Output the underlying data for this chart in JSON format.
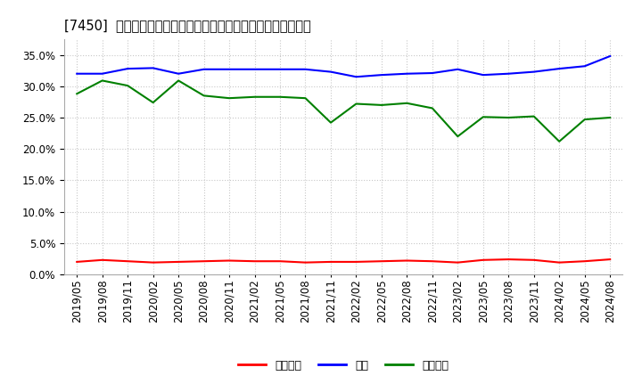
{
  "title": "[7450]  売上債権、在庫、買入債務の総資産に対する比率の推移",
  "background_color": "#ffffff",
  "plot_bg_color": "#ffffff",
  "grid_color": "#c8c8c8",
  "legend_labels": [
    "売上債権",
    "在庫",
    "買入債務"
  ],
  "line_colors": [
    "#ff0000",
    "#0000ff",
    "#008000"
  ],
  "dates": [
    "2019/05",
    "2019/08",
    "2019/11",
    "2020/02",
    "2020/05",
    "2020/08",
    "2020/11",
    "2021/02",
    "2021/05",
    "2021/08",
    "2021/11",
    "2022/02",
    "2022/05",
    "2022/08",
    "2022/11",
    "2023/02",
    "2023/05",
    "2023/08",
    "2023/11",
    "2024/02",
    "2024/05",
    "2024/08"
  ],
  "urikake": [
    2.0,
    2.3,
    2.1,
    1.9,
    2.0,
    2.1,
    2.2,
    2.1,
    2.1,
    1.9,
    2.0,
    2.0,
    2.1,
    2.2,
    2.1,
    1.9,
    2.3,
    2.4,
    2.3,
    1.9,
    2.1,
    2.4
  ],
  "zaiko": [
    32.0,
    32.0,
    32.8,
    32.9,
    32.0,
    32.7,
    32.7,
    32.7,
    32.7,
    32.7,
    32.3,
    31.5,
    31.8,
    32.0,
    32.1,
    32.7,
    31.8,
    32.0,
    32.3,
    32.8,
    33.2,
    34.8
  ],
  "kaiire": [
    28.8,
    30.9,
    30.1,
    27.4,
    30.9,
    28.5,
    28.1,
    28.3,
    28.3,
    28.1,
    24.2,
    27.2,
    27.0,
    27.3,
    26.5,
    22.0,
    25.1,
    25.0,
    25.2,
    21.2,
    24.7,
    25.0
  ],
  "ylim": [
    0.0,
    37.5
  ],
  "yticks": [
    0,
    5,
    10,
    15,
    20,
    25,
    30,
    35
  ],
  "tick_fontsize": 8.5,
  "title_fontsize": 10.5,
  "legend_fontsize": 9,
  "linewidth": 1.5
}
